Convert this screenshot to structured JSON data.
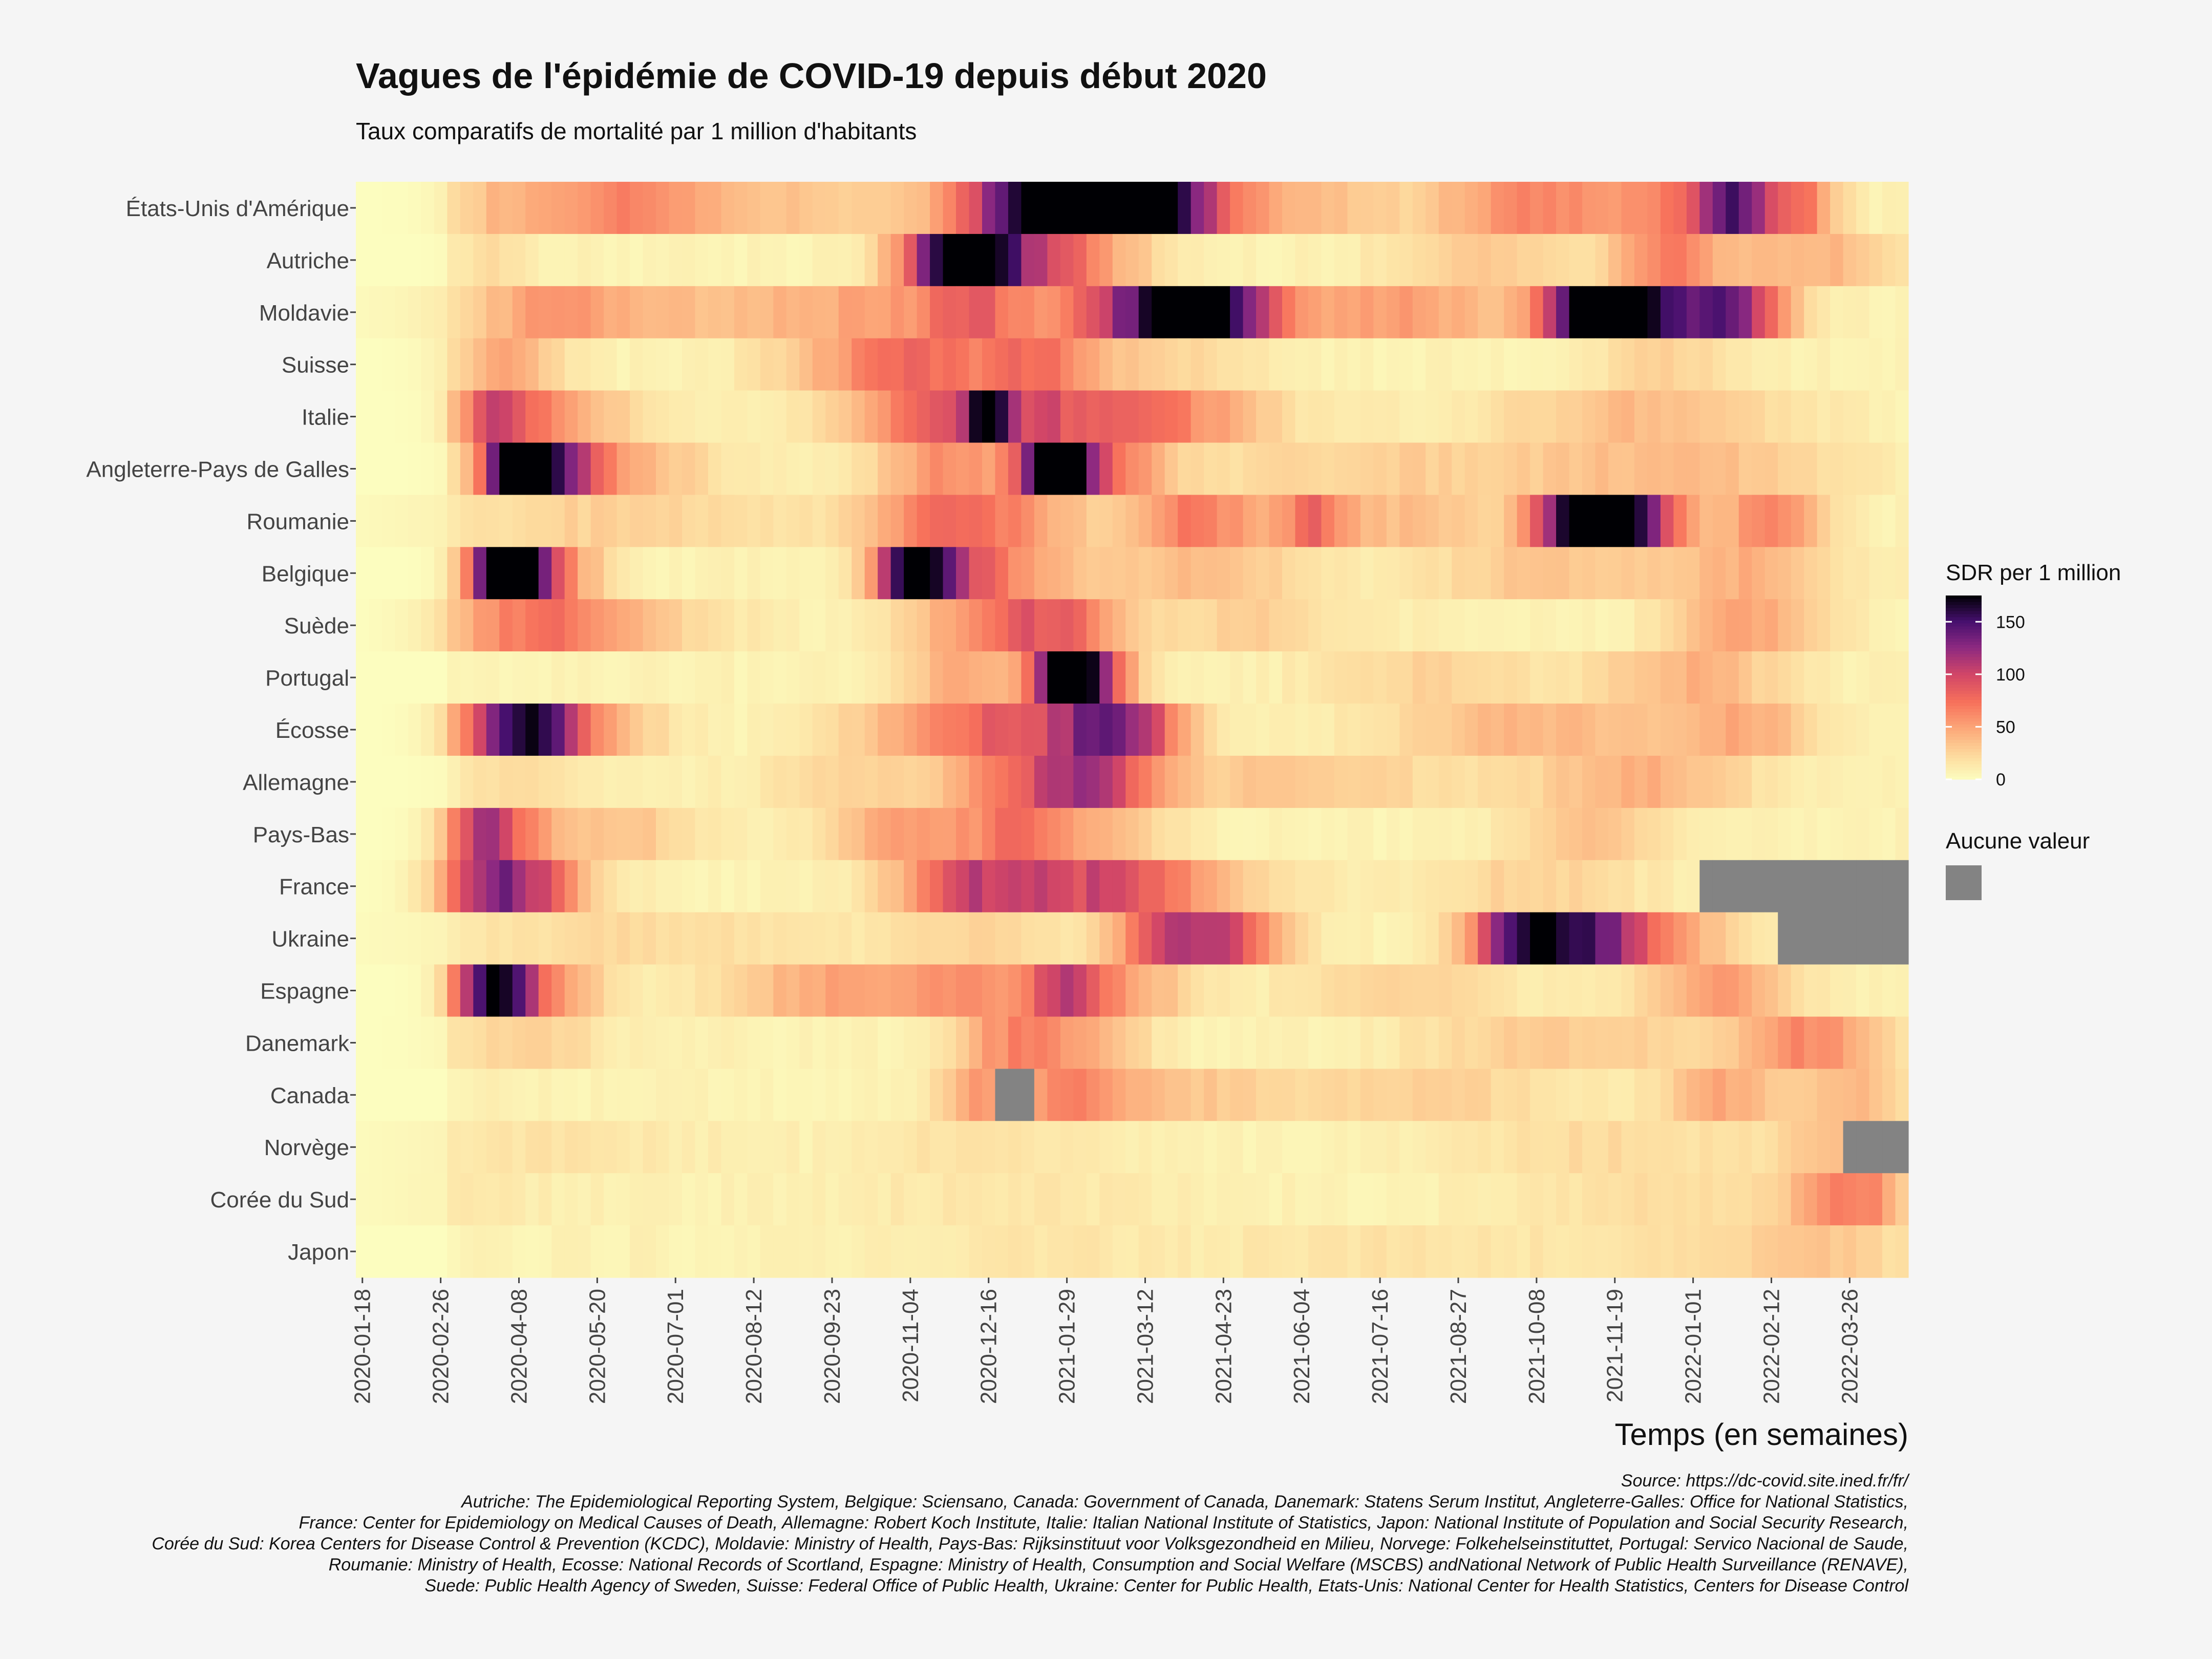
{
  "chart_data": {
    "type": "heatmap",
    "title": "Vagues de l'épidémie de COVID-19 depuis début 2020",
    "subtitle": "Taux comparatifs de mortalité par 1 million d'habitants",
    "xlabel": "Temps (en semaines)",
    "x_ticks": [
      "2020-01-18",
      "2020-02-26",
      "2020-04-08",
      "2020-05-20",
      "2020-07-01",
      "2020-08-12",
      "2020-09-23",
      "2020-11-04",
      "2020-12-16",
      "2021-01-29",
      "2021-03-12",
      "2021-04-23",
      "2021-06-04",
      "2021-07-16",
      "2021-08-27",
      "2021-10-08",
      "2021-11-19",
      "2022-01-01",
      "2022-02-12",
      "2022-03-26"
    ],
    "n_weeks": 119,
    "first_week": "2020-01-18",
    "countries": [
      {
        "name": "États-Unis d'Amérique",
        "waves": [
          [
            11,
            25,
            3
          ],
          [
            20,
            45,
            5
          ],
          [
            34,
            25,
            10
          ],
          [
            51,
            115,
            4
          ],
          [
            56,
            135,
            4
          ],
          [
            60,
            120,
            3
          ],
          [
            64,
            55,
            4
          ],
          [
            73,
            25,
            5
          ],
          [
            89,
            55,
            5
          ],
          [
            102,
            55,
            5
          ],
          [
            105,
            90,
            2
          ],
          [
            110,
            55,
            2
          ]
        ],
        "na": []
      },
      {
        "name": "Autriche",
        "waves": [
          [
            10,
            15,
            2
          ],
          [
            45,
            120,
            3
          ],
          [
            47,
            100,
            2
          ],
          [
            51,
            55,
            3
          ],
          [
            55,
            45,
            4
          ],
          [
            86,
            25,
            5
          ],
          [
            100,
            55,
            3
          ],
          [
            111,
            35,
            5
          ]
        ],
        "na": []
      },
      {
        "name": "Moldavie",
        "waves": [
          [
            14,
            25,
            4
          ],
          [
            22,
            30,
            10
          ],
          [
            40,
            35,
            6
          ],
          [
            47,
            55,
            3
          ],
          [
            56,
            40,
            4
          ],
          [
            62,
            130,
            4
          ],
          [
            66,
            70,
            3
          ],
          [
            78,
            45,
            8
          ],
          [
            95,
            175,
            3
          ],
          [
            99,
            80,
            4
          ],
          [
            105,
            110,
            3
          ]
        ],
        "na": []
      },
      {
        "name": "Suisse",
        "waves": [
          [
            11,
            40,
            3
          ],
          [
            42,
            70,
            6
          ],
          [
            52,
            45,
            3
          ],
          [
            60,
            20,
            6
          ],
          [
            100,
            20,
            4
          ]
        ],
        "na": []
      },
      {
        "name": "Italie",
        "waves": [
          [
            10,
            70,
            2
          ],
          [
            13,
            40,
            3
          ],
          [
            18,
            20,
            4
          ],
          [
            45,
            60,
            6
          ],
          [
            48,
            110,
            1
          ],
          [
            54,
            50,
            7
          ],
          [
            62,
            35,
            6
          ],
          [
            98,
            30,
            8
          ]
        ],
        "na": []
      },
      {
        "name": "Angleterre-Pays de Galles",
        "waves": [
          [
            12,
            170,
            2
          ],
          [
            15,
            80,
            3
          ],
          [
            20,
            30,
            5
          ],
          [
            45,
            50,
            4
          ],
          [
            53,
            175,
            2
          ],
          [
            57,
            60,
            3
          ],
          [
            80,
            20,
            15
          ],
          [
            102,
            25,
            8
          ]
        ],
        "na": []
      },
      {
        "name": "Roumanie",
        "waves": [
          [
            20,
            20,
            10
          ],
          [
            44,
            55,
            4
          ],
          [
            50,
            40,
            4
          ],
          [
            64,
            60,
            4
          ],
          [
            73,
            55,
            2
          ],
          [
            80,
            30,
            5
          ],
          [
            94,
            175,
            3
          ],
          [
            98,
            80,
            3
          ],
          [
            108,
            55,
            3
          ]
        ],
        "na": []
      },
      {
        "name": "Belgique",
        "waves": [
          [
            11,
            175,
            2
          ],
          [
            14,
            60,
            3
          ],
          [
            42,
            130,
            2
          ],
          [
            45,
            70,
            3
          ],
          [
            50,
            35,
            4
          ],
          [
            64,
            30,
            6
          ],
          [
            90,
            25,
            6
          ],
          [
            106,
            35,
            5
          ]
        ],
        "na": []
      },
      {
        "name": "Suède",
        "waves": [
          [
            12,
            45,
            4
          ],
          [
            18,
            35,
            6
          ],
          [
            45,
            35,
            3
          ],
          [
            51,
            60,
            3
          ],
          [
            55,
            40,
            3
          ],
          [
            68,
            20,
            6
          ],
          [
            106,
            45,
            4
          ]
        ],
        "na": []
      },
      {
        "name": "Portugal",
        "waves": [
          [
            46,
            40,
            3
          ],
          [
            54,
            175,
            2
          ],
          [
            57,
            60,
            2
          ],
          [
            82,
            20,
            6
          ],
          [
            102,
            35,
            5
          ]
        ],
        "na": []
      },
      {
        "name": "Écosse",
        "waves": [
          [
            12,
            150,
            3
          ],
          [
            17,
            40,
            4
          ],
          [
            44,
            45,
            5
          ],
          [
            51,
            55,
            4
          ],
          [
            57,
            90,
            3
          ],
          [
            60,
            45,
            3
          ],
          [
            90,
            35,
            8
          ],
          [
            106,
            35,
            4
          ]
        ],
        "na": []
      },
      {
        "name": "Allemagne",
        "waves": [
          [
            12,
            15,
            3
          ],
          [
            38,
            20,
            5
          ],
          [
            48,
            40,
            3
          ],
          [
            54,
            80,
            3
          ],
          [
            58,
            45,
            3
          ],
          [
            70,
            25,
            10
          ],
          [
            98,
            35,
            6
          ]
        ],
        "na": []
      },
      {
        "name": "Pays-Bas",
        "waves": [
          [
            9,
            65,
            2
          ],
          [
            11,
            50,
            3
          ],
          [
            20,
            25,
            4
          ],
          [
            42,
            45,
            4
          ],
          [
            50,
            50,
            3
          ],
          [
            56,
            35,
            4
          ],
          [
            94,
            30,
            4
          ]
        ],
        "na": []
      },
      {
        "name": "France",
        "waves": [
          [
            10,
            100,
            3
          ],
          [
            14,
            45,
            3
          ],
          [
            46,
            60,
            4
          ],
          [
            50,
            45,
            4
          ],
          [
            57,
            55,
            4
          ],
          [
            62,
            35,
            6
          ],
          [
            90,
            20,
            6
          ]
        ],
        "na": [
          [
            103,
            119
          ]
        ]
      },
      {
        "name": "Ukraine",
        "waves": [
          [
            20,
            15,
            10
          ],
          [
            47,
            20,
            5
          ],
          [
            62,
            90,
            3
          ],
          [
            67,
            60,
            3
          ],
          [
            91,
            140,
            3
          ],
          [
            88,
            55,
            3
          ],
          [
            96,
            60,
            2
          ],
          [
            100,
            45,
            4
          ]
        ],
        "na": [
          [
            109,
            119
          ]
        ]
      },
      {
        "name": "Espagne",
        "waves": [
          [
            10,
            160,
            2
          ],
          [
            14,
            50,
            3
          ],
          [
            36,
            40,
            6
          ],
          [
            47,
            45,
            4
          ],
          [
            54,
            90,
            2
          ],
          [
            59,
            40,
            3
          ],
          [
            80,
            20,
            6
          ],
          [
            104,
            45,
            4
          ]
        ],
        "na": []
      },
      {
        "name": "Danemark",
        "waves": [
          [
            13,
            20,
            4
          ],
          [
            50,
            55,
            3
          ],
          [
            56,
            30,
            3
          ],
          [
            92,
            25,
            8
          ],
          [
            111,
            55,
            4
          ]
        ],
        "na": []
      },
      {
        "name": "Canada",
        "waves": [
          [
            47,
            45,
            2
          ],
          [
            54,
            50,
            3
          ],
          [
            62,
            25,
            6
          ],
          [
            82,
            20,
            8
          ],
          [
            104,
            40,
            3
          ],
          [
            114,
            30,
            4
          ]
        ],
        "na": [
          [
            49,
            52
          ]
        ]
      },
      {
        "name": "Norvège",
        "waves": [
          [
            14,
            10,
            8
          ],
          [
            48,
            12,
            6
          ],
          [
            96,
            15,
            8
          ],
          [
            112,
            25,
            3
          ]
        ],
        "na": [
          [
            114,
            119
          ]
        ]
      },
      {
        "name": "Corée du Sud",
        "waves": [
          [
            8,
            6,
            6
          ],
          [
            50,
            8,
            10
          ],
          [
            100,
            15,
            8
          ],
          [
            114,
            60,
            3
          ]
        ],
        "na": []
      },
      {
        "name": "Japon",
        "waves": [
          [
            52,
            8,
            8
          ],
          [
            80,
            10,
            10
          ],
          [
            105,
            12,
            8
          ],
          [
            112,
            20,
            4
          ]
        ],
        "na": []
      }
    ],
    "legend": {
      "title": "SDR per 1 million",
      "ticks": [
        0,
        50,
        100,
        150
      ],
      "range": [
        0,
        175
      ],
      "na_title": "Aucune valeur",
      "na_color": "#838383"
    },
    "colormap": "magma",
    "caption": [
      "Source: https://dc-covid.site.ined.fr/fr/",
      "Autriche: The Epidemiological Reporting System, Belgique: Sciensano, Canada: Government of Canada, Danemark: Statens Serum Institut, Angleterre-Galles: Office for National Statistics,",
      "France: Center for Epidemiology on Medical Causes of Death, Allemagne: Robert Koch Institute, Italie: Italian National Institute of Statistics, Japon: National Institute of Population and Social Security Research,",
      "Corée du Sud: Korea Centers for Disease Control & Prevention (KCDC), Moldavie: Ministry of Health, Pays-Bas: Rijksinstituut voor Volksgezondheid en Milieu, Norvege: Folkehelseinstituttet, Portugal: Servico Nacional de Saude,",
      "Roumanie: Ministry of Health, Ecosse: National Records of Scortland, Espagne: Ministry of Health, Consumption and Social Welfare (MSCBS) andNational Network of Public Health Surveillance (RENAVE),",
      "Suede: Public Health Agency of Sweden, Suisse: Federal Office of Public Health, Ukraine: Center for Public Health, Etats-Unis: National Center for Health Statistics, Centers for Disease Control"
    ]
  }
}
